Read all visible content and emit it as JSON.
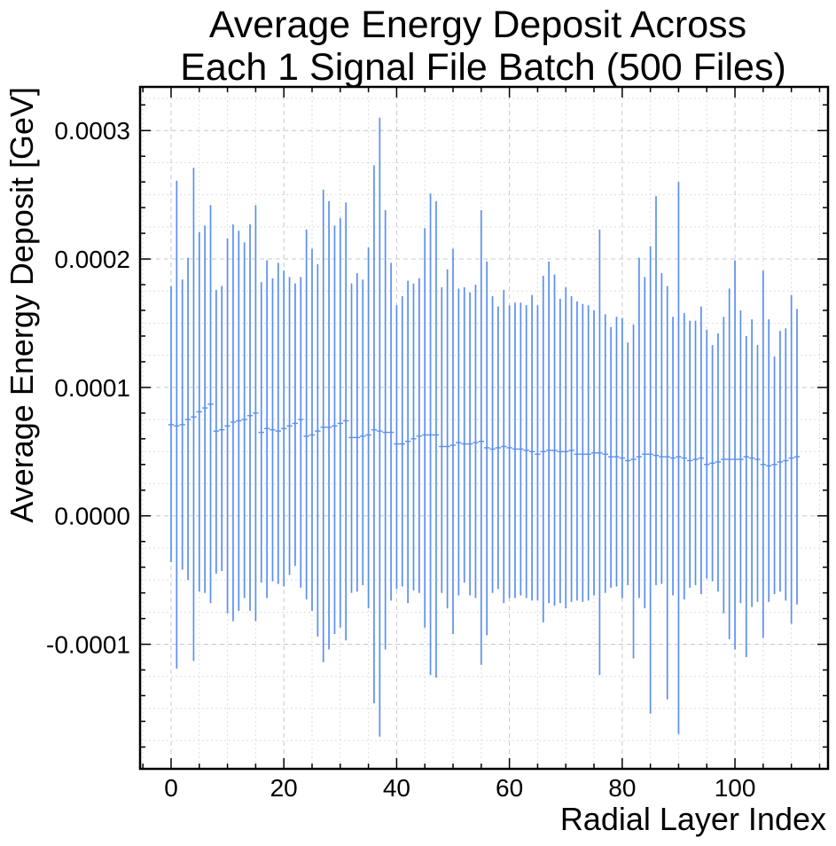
{
  "chart_data": {
    "type": "errorbar",
    "title_lines": [
      "Average Energy Deposit Across",
      "Each 1 Signal File Batch (500 Files)"
    ],
    "xlabel": "Radial Layer Index",
    "ylabel": "Average Energy Deposit [GeV]",
    "xlim": [
      -5.5,
      116.5
    ],
    "ylim": [
      -0.000197,
      0.000334
    ],
    "x_ticks": [
      0,
      20,
      40,
      60,
      80,
      100
    ],
    "x_tick_labels": [
      "0",
      "20",
      "40",
      "60",
      "80",
      "100"
    ],
    "y_ticks": [
      -0.0001,
      0.0,
      0.0001,
      0.0002,
      0.0003
    ],
    "y_tick_labels": [
      "-0.0001",
      "0.0000",
      "0.0001",
      "0.0002",
      "0.0003"
    ],
    "grid": true,
    "color": "#5b8ff0",
    "x": [
      0,
      1,
      2,
      3,
      4,
      5,
      6,
      7,
      8,
      9,
      10,
      11,
      12,
      13,
      14,
      15,
      16,
      17,
      18,
      19,
      20,
      21,
      22,
      23,
      24,
      25,
      26,
      27,
      28,
      29,
      30,
      31,
      32,
      33,
      34,
      35,
      36,
      37,
      38,
      39,
      40,
      41,
      42,
      43,
      44,
      45,
      46,
      47,
      48,
      49,
      50,
      51,
      52,
      53,
      54,
      55,
      56,
      57,
      58,
      59,
      60,
      61,
      62,
      63,
      64,
      65,
      66,
      67,
      68,
      69,
      70,
      71,
      72,
      73,
      74,
      75,
      76,
      77,
      78,
      79,
      80,
      81,
      82,
      83,
      84,
      85,
      86,
      87,
      88,
      89,
      90,
      91,
      92,
      93,
      94,
      95,
      96,
      97,
      98,
      99,
      100,
      101,
      102,
      103,
      104,
      105,
      106,
      107,
      108,
      109,
      110,
      111
    ],
    "y": [
      7.1e-05,
      7e-05,
      7.1e-05,
      7.5e-05,
      7.7e-05,
      8.1e-05,
      8.4e-05,
      8.7e-05,
      6.6e-05,
      6.7e-05,
      7e-05,
      7.3e-05,
      7.4e-05,
      7.5e-05,
      7.8e-05,
      8e-05,
      6.5e-05,
      6.8e-05,
      6.7e-05,
      6.6e-05,
      6.8e-05,
      7e-05,
      7.2e-05,
      7.5e-05,
      6.2e-05,
      6.3e-05,
      6.6e-05,
      6.9e-05,
      6.9e-05,
      7e-05,
      7.2e-05,
      7.4e-05,
      6.1e-05,
      6.1e-05,
      6.2e-05,
      6.3e-05,
      6.7e-05,
      6.6e-05,
      6.5e-05,
      6.5e-05,
      5.6e-05,
      5.6e-05,
      5.8e-05,
      6e-05,
      6.2e-05,
      6.3e-05,
      6.3e-05,
      6.3e-05,
      5.4e-05,
      5.4e-05,
      5.5e-05,
      5.7e-05,
      5.6e-05,
      5.6e-05,
      5.7e-05,
      5.8e-05,
      5.3e-05,
      5.2e-05,
      5.3e-05,
      5.4e-05,
      5.3e-05,
      5.2e-05,
      5.2e-05,
      5.1e-05,
      5e-05,
      4.8e-05,
      5e-05,
      5.1e-05,
      5.1e-05,
      5e-05,
      5e-05,
      5.1e-05,
      4.8e-05,
      4.8e-05,
      4.8e-05,
      4.9e-05,
      4.9e-05,
      4.8e-05,
      4.6e-05,
      4.6e-05,
      4.5e-05,
      4.3e-05,
      4.4e-05,
      4.6e-05,
      4.8e-05,
      4.8e-05,
      4.7e-05,
      4.6e-05,
      4.6e-05,
      4.5e-05,
      4.6e-05,
      4.5e-05,
      4.3e-05,
      4.4e-05,
      4.5e-05,
      4e-05,
      4.1e-05,
      4.2e-05,
      4.4e-05,
      4.4e-05,
      4.4e-05,
      4.4e-05,
      4.6e-05,
      4.5e-05,
      4.4e-05,
      4e-05,
      3.9e-05,
      4e-05,
      4.2e-05,
      4.3e-05,
      4.5e-05,
      4.6e-05
    ],
    "y_err_top": [
      0.000179,
      0.000261,
      0.000184,
      0.000201,
      0.000271,
      0.000221,
      0.000226,
      0.000242,
      0.000176,
      0.000179,
      0.000216,
      0.000227,
      0.000222,
      0.000213,
      0.000227,
      0.000242,
      0.000182,
      0.000199,
      0.000185,
      0.000197,
      0.000191,
      0.000186,
      0.000181,
      0.000186,
      0.000223,
      0.000208,
      0.000196,
      0.000254,
      0.000245,
      0.000226,
      0.000232,
      0.000244,
      0.000181,
      0.000189,
      0.000184,
      0.000209,
      0.000273,
      0.00031,
      0.000238,
      0.000197,
      0.000164,
      0.000171,
      0.000183,
      0.000181,
      0.000185,
      0.000224,
      0.000251,
      0.000245,
      0.000178,
      0.000192,
      0.000208,
      0.000177,
      0.000178,
      0.000174,
      0.00018,
      0.000238,
      0.000198,
      0.000171,
      0.000163,
      0.000176,
      0.000164,
      0.000166,
      0.000166,
      0.000164,
      0.000172,
      0.000164,
      0.000187,
      0.000198,
      0.000188,
      0.000169,
      0.000178,
      0.000171,
      0.000167,
      0.000165,
      0.000164,
      0.00016,
      0.000223,
      0.000157,
      0.000147,
      0.000155,
      0.000154,
      0.000135,
      0.000149,
      0.000201,
      0.000186,
      0.00021,
      0.000249,
      0.000189,
      0.000179,
      0.000155,
      0.00026,
      0.000158,
      0.000152,
      0.000152,
      0.000163,
      0.000145,
      0.000133,
      0.000142,
      0.000155,
      0.000177,
      0.000199,
      0.00016,
      0.00014,
      0.000153,
      0.000133,
      0.000191,
      0.000153,
      0.000124,
      0.000144,
      0.000146,
      0.000172,
      0.000161
    ],
    "y_err_bottom": [
      -3.6e-05,
      -0.000119,
      -4.2e-05,
      -5e-05,
      -0.000113,
      -5.9e-05,
      -6e-05,
      -6.8e-05,
      -4.5e-05,
      -4.3e-05,
      -7.6e-05,
      -8.2e-05,
      -7.4e-05,
      -6.4e-05,
      -7.4e-05,
      -8.2e-05,
      -5.2e-05,
      -6.4e-05,
      -5.1e-05,
      -5.3e-05,
      -5.5e-05,
      -4.6e-05,
      -3.9e-05,
      -5.6e-05,
      -6.5e-05,
      -7.4e-05,
      -9.4e-05,
      -0.000114,
      -0.000104,
      -9.2e-05,
      -8.7e-05,
      -9.7e-05,
      -6e-05,
      -5.9e-05,
      -5.4e-05,
      -7.2e-05,
      -0.000146,
      -0.000172,
      -0.000104,
      -6.6e-05,
      -5.7e-05,
      -5.5e-05,
      -6.8e-05,
      -5.8e-05,
      -6e-05,
      -8.7e-05,
      -0.000124,
      -0.000126,
      -6e-05,
      -7.2e-05,
      -9.2e-05,
      -6.2e-05,
      -5.2e-05,
      -6.2e-05,
      -6.4e-05,
      -0.000116,
      -9.3e-05,
      -6e-05,
      -5.7e-05,
      -6.8e-05,
      -6.4e-05,
      -6.4e-05,
      -6.2e-05,
      -6.4e-05,
      -6.6e-05,
      -6.6e-05,
      -8.3e-05,
      -6.8e-05,
      -7e-05,
      -6.8e-05,
      -7.2e-05,
      -6.7e-05,
      -6.6e-05,
      -6.7e-05,
      -6.6e-05,
      -6.2e-05,
      -0.000124,
      -6e-05,
      -5.6e-05,
      -5.5e-05,
      -6.4e-05,
      -5.4e-05,
      -0.000111,
      -6.4e-05,
      -7.2e-05,
      -0.000154,
      -5.4e-05,
      -5.3e-05,
      -0.000143,
      -6.2e-05,
      -0.00017,
      -6.5e-05,
      -5.6e-05,
      -5.4e-05,
      -6.1e-05,
      -4.9e-05,
      -5.1e-05,
      -5.9e-05,
      -7.6e-05,
      -9.6e-05,
      -0.000104,
      -6.8e-05,
      -0.00011,
      -7.1e-05,
      -6.7e-05,
      -9.5e-05,
      -6.7e-05,
      -6.1e-05,
      -5.9e-05,
      -6.6e-05,
      -8.4e-05,
      -6.9e-05
    ]
  }
}
